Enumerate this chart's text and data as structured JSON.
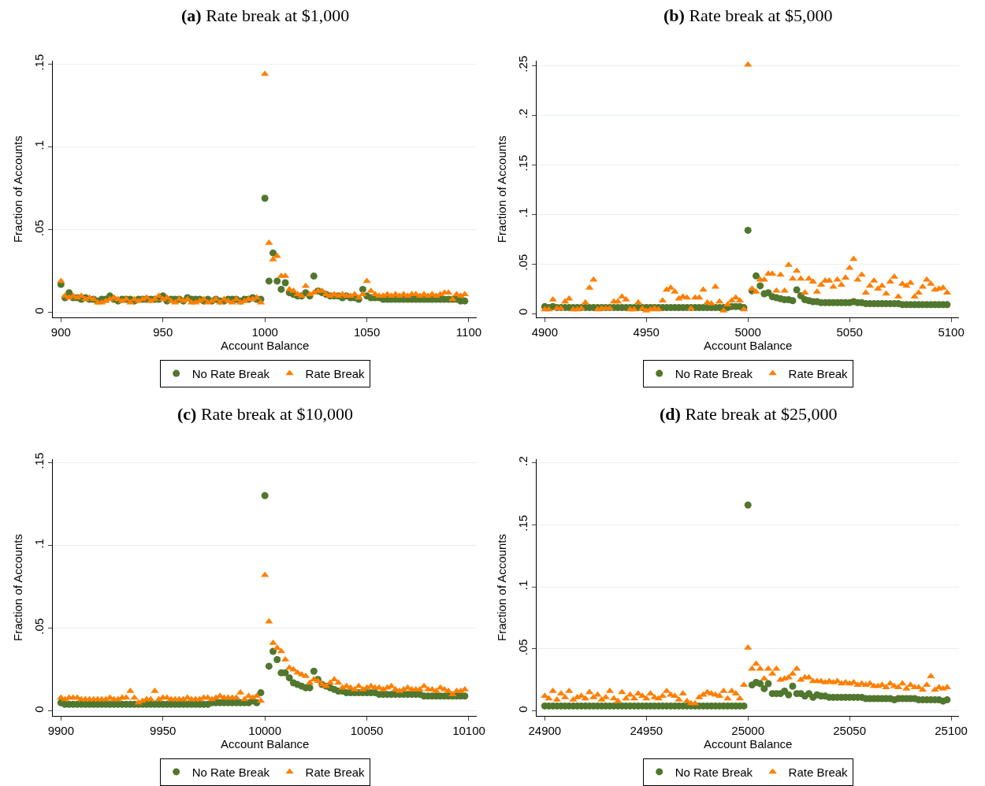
{
  "chart_data": [
    {
      "type": "scatter",
      "title": "(a) Rate break at $1,000",
      "xlabel": "Account Balance",
      "ylabel": "Fraction of Accounts",
      "grid": "y",
      "legend": "bottom",
      "xlim": [
        896,
        1104
      ],
      "xticks": [
        900,
        950,
        1000,
        1050,
        1100
      ],
      "ylim": [
        -0.003,
        0.152
      ],
      "yticks": [
        {
          "value": 0,
          "label": "0"
        },
        {
          "value": 0.05,
          "label": ".05"
        },
        {
          "value": 0.1,
          "label": ".1"
        },
        {
          "value": 0.15,
          "label": ".15"
        }
      ],
      "x": [
        900,
        902,
        904,
        906,
        908,
        910,
        912,
        914,
        916,
        918,
        920,
        922,
        924,
        926,
        928,
        930,
        932,
        934,
        936,
        938,
        940,
        942,
        944,
        946,
        948,
        950,
        952,
        954,
        956,
        958,
        960,
        962,
        964,
        966,
        968,
        970,
        972,
        974,
        976,
        978,
        980,
        982,
        984,
        986,
        988,
        990,
        992,
        994,
        996,
        998,
        1000,
        1002,
        1004,
        1006,
        1008,
        1010,
        1012,
        1014,
        1016,
        1018,
        1020,
        1022,
        1024,
        1026,
        1028,
        1030,
        1032,
        1034,
        1036,
        1038,
        1040,
        1042,
        1044,
        1046,
        1048,
        1050,
        1052,
        1054,
        1056,
        1058,
        1060,
        1062,
        1064,
        1066,
        1068,
        1070,
        1072,
        1074,
        1076,
        1078,
        1080,
        1082,
        1084,
        1086,
        1088,
        1090,
        1092,
        1094,
        1096,
        1098
      ],
      "series": [
        {
          "name": "No Rate Break",
          "color": "#51772e",
          "marker": "circle",
          "values": [
            0.017,
            0.009,
            0.012,
            0.009,
            0.009,
            0.008,
            0.009,
            0.008,
            0.008,
            0.007,
            0.008,
            0.008,
            0.01,
            0.008,
            0.007,
            0.008,
            0.008,
            0.008,
            0.007,
            0.008,
            0.008,
            0.008,
            0.008,
            0.008,
            0.008,
            0.01,
            0.007,
            0.008,
            0.008,
            0.008,
            0.007,
            0.009,
            0.008,
            0.008,
            0.008,
            0.007,
            0.008,
            0.007,
            0.008,
            0.007,
            0.007,
            0.008,
            0.008,
            0.008,
            0.007,
            0.008,
            0.008,
            0.009,
            0.008,
            0.008,
            0.069,
            0.019,
            0.036,
            0.019,
            0.014,
            0.018,
            0.012,
            0.011,
            0.01,
            0.01,
            0.012,
            0.01,
            0.022,
            0.013,
            0.012,
            0.011,
            0.01,
            0.01,
            0.01,
            0.009,
            0.01,
            0.009,
            0.009,
            0.008,
            0.014,
            0.01,
            0.009,
            0.009,
            0.009,
            0.008,
            0.008,
            0.008,
            0.008,
            0.008,
            0.008,
            0.008,
            0.008,
            0.008,
            0.008,
            0.008,
            0.008,
            0.008,
            0.008,
            0.008,
            0.008,
            0.008,
            0.008,
            0.008,
            0.007,
            0.007
          ]
        },
        {
          "name": "Rate Break",
          "color": "#ff7f00",
          "marker": "triangle",
          "values": [
            0.019,
            0.01,
            0.009,
            0.01,
            0.009,
            0.01,
            0.008,
            0.009,
            0.008,
            0.006,
            0.006,
            0.007,
            0.008,
            0.009,
            0.008,
            0.007,
            0.008,
            0.006,
            0.008,
            0.007,
            0.008,
            0.009,
            0.007,
            0.008,
            0.01,
            0.008,
            0.009,
            0.007,
            0.006,
            0.008,
            0.007,
            0.008,
            0.006,
            0.006,
            0.007,
            0.008,
            0.006,
            0.007,
            0.008,
            0.006,
            0.008,
            0.007,
            0.006,
            0.008,
            0.006,
            0.007,
            0.008,
            0.008,
            0.009,
            0.006,
            0.144,
            0.042,
            0.032,
            0.034,
            0.022,
            0.022,
            0.014,
            0.013,
            0.011,
            0.01,
            0.016,
            0.011,
            0.012,
            0.013,
            0.013,
            0.011,
            0.01,
            0.011,
            0.01,
            0.011,
            0.01,
            0.01,
            0.011,
            0.009,
            0.011,
            0.019,
            0.013,
            0.011,
            0.01,
            0.01,
            0.011,
            0.01,
            0.011,
            0.01,
            0.011,
            0.01,
            0.011,
            0.011,
            0.01,
            0.011,
            0.01,
            0.011,
            0.01,
            0.011,
            0.012,
            0.012,
            0.008,
            0.011,
            0.01,
            0.011
          ]
        }
      ]
    },
    {
      "type": "scatter",
      "title": "(b) Rate break at $5,000",
      "xlabel": "Account Balance",
      "ylabel": "Fraction of Accounts",
      "grid": "y",
      "legend": "bottom",
      "xlim": [
        4896,
        5104
      ],
      "xticks": [
        4900,
        4950,
        5000,
        5050,
        5100
      ],
      "ylim": [
        -0.004,
        0.255
      ],
      "yticks": [
        {
          "value": 0,
          "label": "0"
        },
        {
          "value": 0.05,
          "label": ".05"
        },
        {
          "value": 0.1,
          "label": ".1"
        },
        {
          "value": 0.15,
          "label": ".15"
        },
        {
          "value": 0.2,
          "label": ".2"
        },
        {
          "value": 0.25,
          "label": ".25"
        }
      ],
      "x": [
        4900,
        4902,
        4904,
        4906,
        4908,
        4910,
        4912,
        4914,
        4916,
        4918,
        4920,
        4922,
        4924,
        4926,
        4928,
        4930,
        4932,
        4934,
        4936,
        4938,
        4940,
        4942,
        4944,
        4946,
        4948,
        4950,
        4952,
        4954,
        4956,
        4958,
        4960,
        4962,
        4964,
        4966,
        4968,
        4970,
        4972,
        4974,
        4976,
        4978,
        4980,
        4982,
        4984,
        4986,
        4988,
        4990,
        4992,
        4994,
        4996,
        4998,
        5000,
        5002,
        5004,
        5006,
        5008,
        5010,
        5012,
        5014,
        5016,
        5018,
        5020,
        5022,
        5024,
        5026,
        5028,
        5030,
        5032,
        5034,
        5036,
        5038,
        5040,
        5042,
        5044,
        5046,
        5048,
        5050,
        5052,
        5054,
        5056,
        5058,
        5060,
        5062,
        5064,
        5066,
        5068,
        5070,
        5072,
        5074,
        5076,
        5078,
        5080,
        5082,
        5084,
        5086,
        5088,
        5090,
        5092,
        5094,
        5096,
        5098
      ],
      "series": [
        {
          "name": "No Rate Break",
          "color": "#51772e",
          "marker": "circle",
          "values": [
            0.007,
            0.006,
            0.007,
            0.006,
            0.006,
            0.006,
            0.006,
            0.006,
            0.006,
            0.006,
            0.006,
            0.006,
            0.006,
            0.006,
            0.006,
            0.006,
            0.006,
            0.006,
            0.006,
            0.006,
            0.006,
            0.006,
            0.006,
            0.006,
            0.006,
            0.006,
            0.006,
            0.006,
            0.006,
            0.006,
            0.006,
            0.006,
            0.006,
            0.006,
            0.006,
            0.006,
            0.006,
            0.006,
            0.006,
            0.006,
            0.006,
            0.006,
            0.006,
            0.006,
            0.006,
            0.006,
            0.007,
            0.007,
            0.007,
            0.006,
            0.084,
            0.023,
            0.038,
            0.028,
            0.02,
            0.021,
            0.017,
            0.016,
            0.015,
            0.014,
            0.014,
            0.013,
            0.024,
            0.018,
            0.014,
            0.013,
            0.012,
            0.012,
            0.011,
            0.011,
            0.011,
            0.011,
            0.011,
            0.011,
            0.011,
            0.011,
            0.012,
            0.011,
            0.011,
            0.01,
            0.01,
            0.01,
            0.01,
            0.01,
            0.01,
            0.01,
            0.01,
            0.01,
            0.009,
            0.009,
            0.009,
            0.009,
            0.009,
            0.009,
            0.009,
            0.009,
            0.009,
            0.009,
            0.009,
            0.009
          ]
        },
        {
          "name": "Rate Break",
          "color": "#ff7f00",
          "marker": "triangle",
          "values": [
            0.004,
            0.004,
            0.014,
            0.005,
            0.005,
            0.012,
            0.015,
            0.004,
            0.004,
            0.005,
            0.011,
            0.026,
            0.034,
            0.004,
            0.005,
            0.005,
            0.005,
            0.012,
            0.012,
            0.017,
            0.014,
            0.004,
            0.004,
            0.011,
            0.005,
            0.003,
            0.004,
            0.005,
            0.004,
            0.013,
            0.024,
            0.026,
            0.022,
            0.015,
            0.017,
            0.016,
            0.005,
            0.016,
            0.016,
            0.024,
            0.011,
            0.01,
            0.027,
            0.012,
            0.003,
            0.009,
            0.013,
            0.016,
            0.013,
            0.004,
            0.251,
            0.025,
            0.022,
            0.034,
            0.034,
            0.04,
            0.04,
            0.023,
            0.039,
            0.023,
            0.049,
            0.035,
            0.043,
            0.035,
            0.021,
            0.035,
            0.032,
            0.022,
            0.029,
            0.033,
            0.033,
            0.027,
            0.034,
            0.029,
            0.036,
            0.046,
            0.055,
            0.034,
            0.039,
            0.021,
            0.028,
            0.033,
            0.025,
            0.028,
            0.02,
            0.032,
            0.037,
            0.017,
            0.03,
            0.028,
            0.031,
            0.017,
            0.021,
            0.027,
            0.034,
            0.03,
            0.024,
            0.025,
            0.026,
            0.021
          ]
        }
      ]
    },
    {
      "type": "scatter",
      "title": "(c) Rate break at $10,000",
      "xlabel": "Account Balance",
      "ylabel": "Fraction of Accounts",
      "grid": "y",
      "legend": "bottom",
      "xlim": [
        9896,
        10104
      ],
      "xticks": [
        9900,
        9950,
        10000,
        10050,
        10100
      ],
      "ylim": [
        -0.003,
        0.152
      ],
      "yticks": [
        {
          "value": 0,
          "label": "0"
        },
        {
          "value": 0.05,
          "label": ".05"
        },
        {
          "value": 0.1,
          "label": ".1"
        },
        {
          "value": 0.15,
          "label": ".15"
        }
      ],
      "x": [
        9900,
        9902,
        9904,
        9906,
        9908,
        9910,
        9912,
        9914,
        9916,
        9918,
        9920,
        9922,
        9924,
        9926,
        9928,
        9930,
        9932,
        9934,
        9936,
        9938,
        9940,
        9942,
        9944,
        9946,
        9948,
        9950,
        9952,
        9954,
        9956,
        9958,
        9960,
        9962,
        9964,
        9966,
        9968,
        9970,
        9972,
        9974,
        9976,
        9978,
        9980,
        9982,
        9984,
        9986,
        9988,
        9990,
        9992,
        9994,
        9996,
        9998,
        10000,
        10002,
        10004,
        10006,
        10008,
        10010,
        10012,
        10014,
        10016,
        10018,
        10020,
        10022,
        10024,
        10026,
        10028,
        10030,
        10032,
        10034,
        10036,
        10038,
        10040,
        10042,
        10044,
        10046,
        10048,
        10050,
        10052,
        10054,
        10056,
        10058,
        10060,
        10062,
        10064,
        10066,
        10068,
        10070,
        10072,
        10074,
        10076,
        10078,
        10080,
        10082,
        10084,
        10086,
        10088,
        10090,
        10092,
        10094,
        10096,
        10098
      ],
      "series": [
        {
          "name": "No Rate Break",
          "color": "#51772e",
          "marker": "circle",
          "values": [
            0.005,
            0.004,
            0.004,
            0.004,
            0.004,
            0.004,
            0.004,
            0.004,
            0.004,
            0.004,
            0.004,
            0.004,
            0.004,
            0.004,
            0.004,
            0.004,
            0.004,
            0.004,
            0.004,
            0.004,
            0.004,
            0.004,
            0.004,
            0.004,
            0.004,
            0.004,
            0.004,
            0.004,
            0.004,
            0.004,
            0.004,
            0.004,
            0.004,
            0.004,
            0.004,
            0.004,
            0.004,
            0.005,
            0.005,
            0.005,
            0.005,
            0.005,
            0.005,
            0.005,
            0.005,
            0.005,
            0.005,
            0.006,
            0.005,
            0.011,
            0.13,
            0.027,
            0.036,
            0.031,
            0.023,
            0.023,
            0.02,
            0.017,
            0.016,
            0.015,
            0.014,
            0.014,
            0.024,
            0.019,
            0.016,
            0.015,
            0.014,
            0.013,
            0.012,
            0.012,
            0.011,
            0.011,
            0.011,
            0.011,
            0.011,
            0.011,
            0.011,
            0.011,
            0.01,
            0.01,
            0.01,
            0.01,
            0.01,
            0.01,
            0.01,
            0.01,
            0.01,
            0.01,
            0.01,
            0.009,
            0.009,
            0.009,
            0.009,
            0.009,
            0.009,
            0.009,
            0.009,
            0.009,
            0.009,
            0.009
          ]
        },
        {
          "name": "Rate Break",
          "color": "#ff7f00",
          "marker": "triangle",
          "values": [
            0.008,
            0.007,
            0.008,
            0.008,
            0.008,
            0.007,
            0.007,
            0.007,
            0.007,
            0.007,
            0.007,
            0.007,
            0.008,
            0.007,
            0.007,
            0.008,
            0.008,
            0.012,
            0.008,
            0.005,
            0.006,
            0.007,
            0.007,
            0.012,
            0.007,
            0.008,
            0.008,
            0.007,
            0.007,
            0.007,
            0.007,
            0.008,
            0.007,
            0.007,
            0.007,
            0.008,
            0.008,
            0.007,
            0.008,
            0.009,
            0.008,
            0.008,
            0.008,
            0.008,
            0.011,
            0.007,
            0.009,
            0.008,
            0.009,
            0.006,
            0.082,
            0.054,
            0.041,
            0.038,
            0.036,
            0.031,
            0.026,
            0.025,
            0.023,
            0.022,
            0.021,
            0.017,
            0.019,
            0.018,
            0.016,
            0.015,
            0.017,
            0.019,
            0.017,
            0.014,
            0.015,
            0.014,
            0.013,
            0.015,
            0.013,
            0.014,
            0.015,
            0.014,
            0.014,
            0.013,
            0.014,
            0.015,
            0.013,
            0.012,
            0.013,
            0.014,
            0.013,
            0.013,
            0.013,
            0.015,
            0.013,
            0.013,
            0.012,
            0.014,
            0.013,
            0.012,
            0.01,
            0.012,
            0.012,
            0.013
          ]
        }
      ]
    },
    {
      "type": "scatter",
      "title": "(d) Rate break at $25,000",
      "xlabel": "Account Balance",
      "ylabel": "Fraction of Accounts",
      "grid": "y",
      "legend": "bottom",
      "xlim": [
        24896,
        25104
      ],
      "xticks": [
        24900,
        24950,
        25000,
        25050,
        25100
      ],
      "ylim": [
        -0.004,
        0.203
      ],
      "yticks": [
        {
          "value": 0,
          "label": "0"
        },
        {
          "value": 0.05,
          "label": ".05"
        },
        {
          "value": 0.1,
          "label": ".1"
        },
        {
          "value": 0.15,
          "label": ".15"
        },
        {
          "value": 0.2,
          "label": ".2"
        }
      ],
      "x": [
        24900,
        24902,
        24904,
        24906,
        24908,
        24910,
        24912,
        24914,
        24916,
        24918,
        24920,
        24922,
        24924,
        24926,
        24928,
        24930,
        24932,
        24934,
        24936,
        24938,
        24940,
        24942,
        24944,
        24946,
        24948,
        24950,
        24952,
        24954,
        24956,
        24958,
        24960,
        24962,
        24964,
        24966,
        24968,
        24970,
        24972,
        24974,
        24976,
        24978,
        24980,
        24982,
        24984,
        24986,
        24988,
        24990,
        24992,
        24994,
        24996,
        24998,
        25000,
        25002,
        25004,
        25006,
        25008,
        25010,
        25012,
        25014,
        25016,
        25018,
        25020,
        25022,
        25024,
        25026,
        25028,
        25030,
        25032,
        25034,
        25036,
        25038,
        25040,
        25042,
        25044,
        25046,
        25048,
        25050,
        25052,
        25054,
        25056,
        25058,
        25060,
        25062,
        25064,
        25066,
        25068,
        25070,
        25072,
        25074,
        25076,
        25078,
        25080,
        25082,
        25084,
        25086,
        25088,
        25090,
        25092,
        25094,
        25096,
        25098
      ],
      "series": [
        {
          "name": "No Rate Break",
          "color": "#51772e",
          "marker": "circle",
          "values": [
            0.004,
            0.004,
            0.004,
            0.004,
            0.004,
            0.004,
            0.004,
            0.004,
            0.004,
            0.004,
            0.004,
            0.004,
            0.004,
            0.004,
            0.004,
            0.004,
            0.004,
            0.004,
            0.004,
            0.004,
            0.004,
            0.004,
            0.004,
            0.004,
            0.004,
            0.004,
            0.004,
            0.004,
            0.004,
            0.004,
            0.004,
            0.004,
            0.004,
            0.004,
            0.004,
            0.004,
            0.004,
            0.004,
            0.004,
            0.004,
            0.004,
            0.004,
            0.004,
            0.004,
            0.004,
            0.004,
            0.004,
            0.004,
            0.004,
            0.004,
            0.166,
            0.021,
            0.023,
            0.022,
            0.018,
            0.022,
            0.014,
            0.014,
            0.014,
            0.016,
            0.013,
            0.02,
            0.014,
            0.014,
            0.012,
            0.014,
            0.011,
            0.013,
            0.012,
            0.012,
            0.011,
            0.011,
            0.011,
            0.011,
            0.011,
            0.011,
            0.011,
            0.011,
            0.011,
            0.01,
            0.01,
            0.01,
            0.01,
            0.01,
            0.01,
            0.01,
            0.009,
            0.01,
            0.01,
            0.01,
            0.01,
            0.01,
            0.009,
            0.009,
            0.009,
            0.009,
            0.009,
            0.009,
            0.008,
            0.009
          ]
        },
        {
          "name": "Rate Break",
          "color": "#ff7f00",
          "marker": "triangle",
          "values": [
            0.012,
            0.01,
            0.016,
            0.009,
            0.014,
            0.011,
            0.016,
            0.009,
            0.011,
            0.012,
            0.01,
            0.015,
            0.011,
            0.013,
            0.009,
            0.011,
            0.016,
            0.01,
            0.008,
            0.015,
            0.01,
            0.013,
            0.01,
            0.014,
            0.012,
            0.01,
            0.014,
            0.011,
            0.01,
            0.012,
            0.016,
            0.013,
            0.012,
            0.009,
            0.014,
            0.008,
            0.006,
            0.006,
            0.011,
            0.013,
            0.015,
            0.014,
            0.013,
            0.012,
            0.016,
            0.01,
            0.016,
            0.014,
            0.01,
            0.021,
            0.051,
            0.034,
            0.038,
            0.034,
            0.026,
            0.034,
            0.03,
            0.034,
            0.025,
            0.026,
            0.027,
            0.03,
            0.034,
            0.025,
            0.027,
            0.027,
            0.024,
            0.024,
            0.024,
            0.023,
            0.024,
            0.023,
            0.024,
            0.022,
            0.023,
            0.022,
            0.023,
            0.021,
            0.022,
            0.021,
            0.022,
            0.02,
            0.02,
            0.021,
            0.019,
            0.022,
            0.02,
            0.019,
            0.022,
            0.018,
            0.021,
            0.019,
            0.019,
            0.017,
            0.021,
            0.028,
            0.017,
            0.019,
            0.018,
            0.019
          ]
        }
      ]
    }
  ]
}
